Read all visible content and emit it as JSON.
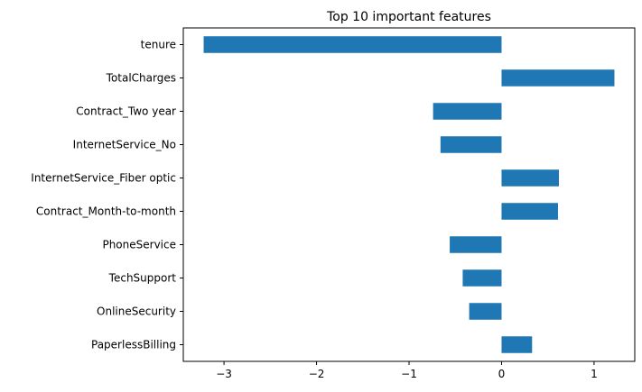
{
  "chart_data": {
    "type": "bar",
    "orientation": "horizontal",
    "title": "Top 10 important features",
    "xlabel": "",
    "ylabel": "",
    "categories": [
      "tenure",
      "TotalCharges",
      "Contract_Two year",
      "InternetService_No",
      "InternetService_Fiber optic",
      "Contract_Month-to-month",
      "PhoneService",
      "TechSupport",
      "OnlineSecurity",
      "PaperlessBilling"
    ],
    "values": [
      -3.22,
      1.22,
      -0.74,
      -0.66,
      0.62,
      0.61,
      -0.56,
      -0.42,
      -0.35,
      0.33
    ],
    "xlim": [
      -3.44,
      1.44
    ],
    "xticks": [
      -3,
      -2,
      -1,
      0,
      1
    ],
    "xtick_labels": [
      "−3",
      "−2",
      "−1",
      "0",
      "1"
    ],
    "bar_color": "#1f77b4",
    "grid": false,
    "legend": "none"
  }
}
